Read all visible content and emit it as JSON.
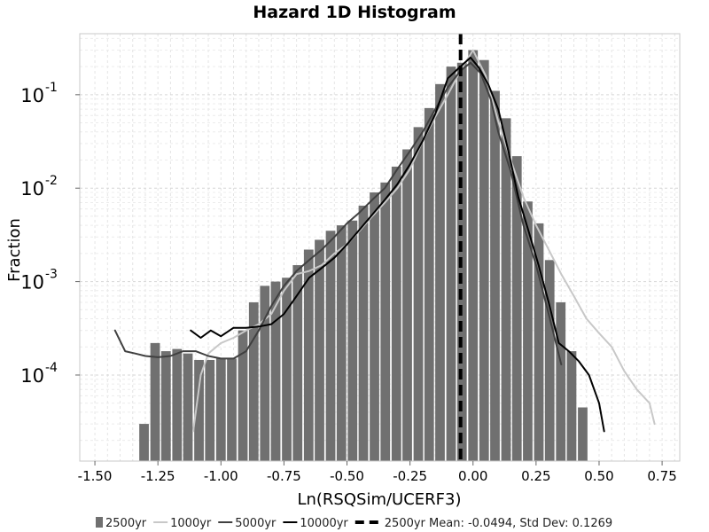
{
  "chart_data": {
    "type": "bar",
    "title": "Hazard 1D Histogram",
    "xlabel": "Ln(RSQSim/UCERF3)",
    "ylabel": "Fraction",
    "xlim": [
      -1.56,
      0.82
    ],
    "ylim": [
      1.2e-05,
      0.45
    ],
    "yscale": "log",
    "grid": true,
    "legend_position": "bottom",
    "xticks": [
      "-1.50",
      "-1.25",
      "-1.00",
      "-0.75",
      "-0.50",
      "-0.25",
      "0.00",
      "0.25",
      "0.50",
      "0.75"
    ],
    "xtick_values": [
      -1.5,
      -1.25,
      -1.0,
      -0.75,
      -0.5,
      -0.25,
      0.0,
      0.25,
      0.5,
      0.75
    ],
    "yticks": [
      {
        "value": 0.1,
        "base": "10",
        "exp": "-1"
      },
      {
        "value": 0.01,
        "base": "10",
        "exp": "-2"
      },
      {
        "value": 0.001,
        "base": "10",
        "exp": "-3"
      },
      {
        "value": 0.0001,
        "base": "10",
        "exp": "-4"
      }
    ],
    "bar_width": 0.0435,
    "bars": {
      "name": "2500yr",
      "color": "#707070",
      "x": [
        -1.305,
        -1.261,
        -1.218,
        -1.174,
        -1.131,
        -1.087,
        -1.044,
        -1.0,
        -0.957,
        -0.913,
        -0.87,
        -0.826,
        -0.783,
        -0.739,
        -0.696,
        -0.652,
        -0.609,
        -0.565,
        -0.522,
        -0.478,
        -0.435,
        -0.391,
        -0.348,
        -0.304,
        -0.261,
        -0.217,
        -0.174,
        -0.131,
        -0.087,
        -0.044,
        0.0,
        0.044,
        0.087,
        0.131,
        0.174,
        0.217,
        0.261,
        0.304,
        0.348,
        0.391,
        0.435
      ],
      "values": [
        3e-05,
        0.00022,
        0.00018,
        0.00019,
        0.00017,
        0.000145,
        0.000145,
        0.00015,
        0.00015,
        0.0003,
        0.0006,
        0.0009,
        0.001,
        0.0011,
        0.0015,
        0.0022,
        0.0028,
        0.0035,
        0.004,
        0.0045,
        0.0065,
        0.009,
        0.0115,
        0.017,
        0.026,
        0.045,
        0.072,
        0.13,
        0.2,
        0.22,
        0.3,
        0.235,
        0.11,
        0.056,
        0.022,
        0.0072,
        0.0042,
        0.0017,
        0.0006,
        0.00018,
        4.5e-05
      ]
    },
    "series": [
      {
        "name": "1000yr",
        "color": "#c8c8c8",
        "width": 2,
        "dash": "",
        "x": [
          -1.11,
          -1.08,
          -1.05,
          -1.0,
          -0.95,
          -0.9,
          -0.85,
          -0.8,
          -0.75,
          -0.7,
          -0.65,
          -0.6,
          -0.55,
          -0.5,
          -0.45,
          -0.4,
          -0.35,
          -0.3,
          -0.25,
          -0.2,
          -0.15,
          -0.1,
          -0.05,
          0.0,
          0.05,
          0.1,
          0.15,
          0.2,
          0.25,
          0.3,
          0.35,
          0.4,
          0.45,
          0.5,
          0.55,
          0.6,
          0.65,
          0.7,
          0.72
        ],
        "values": [
          2.5e-05,
          0.0001,
          0.00017,
          0.00022,
          0.00025,
          0.0003,
          0.00035,
          0.00045,
          0.0008,
          0.0012,
          0.0013,
          0.0015,
          0.002,
          0.0025,
          0.0035,
          0.005,
          0.007,
          0.01,
          0.016,
          0.032,
          0.058,
          0.1,
          0.18,
          0.3,
          0.16,
          0.052,
          0.02,
          0.008,
          0.004,
          0.0022,
          0.0012,
          0.0007,
          0.0004,
          0.00028,
          0.0002,
          0.00011,
          7e-05,
          5e-05,
          3e-05
        ]
      },
      {
        "name": "5000yr",
        "color": "#404040",
        "width": 2,
        "dash": "",
        "x": [
          -1.42,
          -1.38,
          -1.34,
          -1.3,
          -1.25,
          -1.2,
          -1.15,
          -1.1,
          -1.05,
          -1.0,
          -0.95,
          -0.9,
          -0.85,
          -0.8,
          -0.75,
          -0.7,
          -0.65,
          -0.6,
          -0.55,
          -0.5,
          -0.45,
          -0.4,
          -0.35,
          -0.3,
          -0.25,
          -0.2,
          -0.15,
          -0.1,
          -0.05,
          -0.01,
          0.03,
          0.07,
          0.1,
          0.15,
          0.2,
          0.25,
          0.3,
          0.35
        ],
        "values": [
          0.0003,
          0.00018,
          0.00017,
          0.00016,
          0.000155,
          0.00016,
          0.00018,
          0.00018,
          0.00016,
          0.00015,
          0.00015,
          0.00018,
          0.0003,
          0.00055,
          0.0009,
          0.0013,
          0.0017,
          0.0022,
          0.003,
          0.0042,
          0.0055,
          0.0075,
          0.01,
          0.016,
          0.025,
          0.04,
          0.07,
          0.12,
          0.18,
          0.22,
          0.17,
          0.09,
          0.04,
          0.015,
          0.004,
          0.0015,
          0.00045,
          0.00013
        ]
      },
      {
        "name": "10000yr",
        "color": "#000000",
        "width": 2,
        "dash": "",
        "x": [
          -1.12,
          -1.08,
          -1.04,
          -1.0,
          -0.95,
          -0.9,
          -0.85,
          -0.8,
          -0.75,
          -0.7,
          -0.65,
          -0.6,
          -0.55,
          -0.5,
          -0.45,
          -0.4,
          -0.35,
          -0.3,
          -0.25,
          -0.2,
          -0.15,
          -0.1,
          -0.05,
          -0.01,
          0.02,
          0.06,
          0.1,
          0.14,
          0.18,
          0.22,
          0.26,
          0.3,
          0.34,
          0.38,
          0.42,
          0.46,
          0.5,
          0.52
        ],
        "values": [
          0.0003,
          0.00025,
          0.0003,
          0.00026,
          0.00032,
          0.00032,
          0.00033,
          0.00035,
          0.00045,
          0.0007,
          0.0011,
          0.0014,
          0.0018,
          0.0025,
          0.0036,
          0.0052,
          0.0075,
          0.011,
          0.018,
          0.032,
          0.062,
          0.15,
          0.2,
          0.25,
          0.2,
          0.13,
          0.07,
          0.025,
          0.008,
          0.0035,
          0.0015,
          0.0006,
          0.00022,
          0.00018,
          0.00014,
          0.0001,
          5e-05,
          2.5e-05
        ]
      }
    ],
    "mean_line": {
      "name": "2500yr Mean: -0.0494, Std Dev: 0.1269",
      "x": -0.0494,
      "color": "#000000"
    },
    "legend": [
      {
        "kind": "bar",
        "label": "2500yr",
        "color": "#707070"
      },
      {
        "kind": "line",
        "label": "1000yr",
        "color": "#c8c8c8"
      },
      {
        "kind": "line",
        "label": "5000yr",
        "color": "#404040"
      },
      {
        "kind": "line",
        "label": "10000yr",
        "color": "#000000"
      },
      {
        "kind": "dash",
        "label": "2500yr Mean: -0.0494, Std Dev: 0.1269",
        "color": "#000000"
      }
    ]
  }
}
